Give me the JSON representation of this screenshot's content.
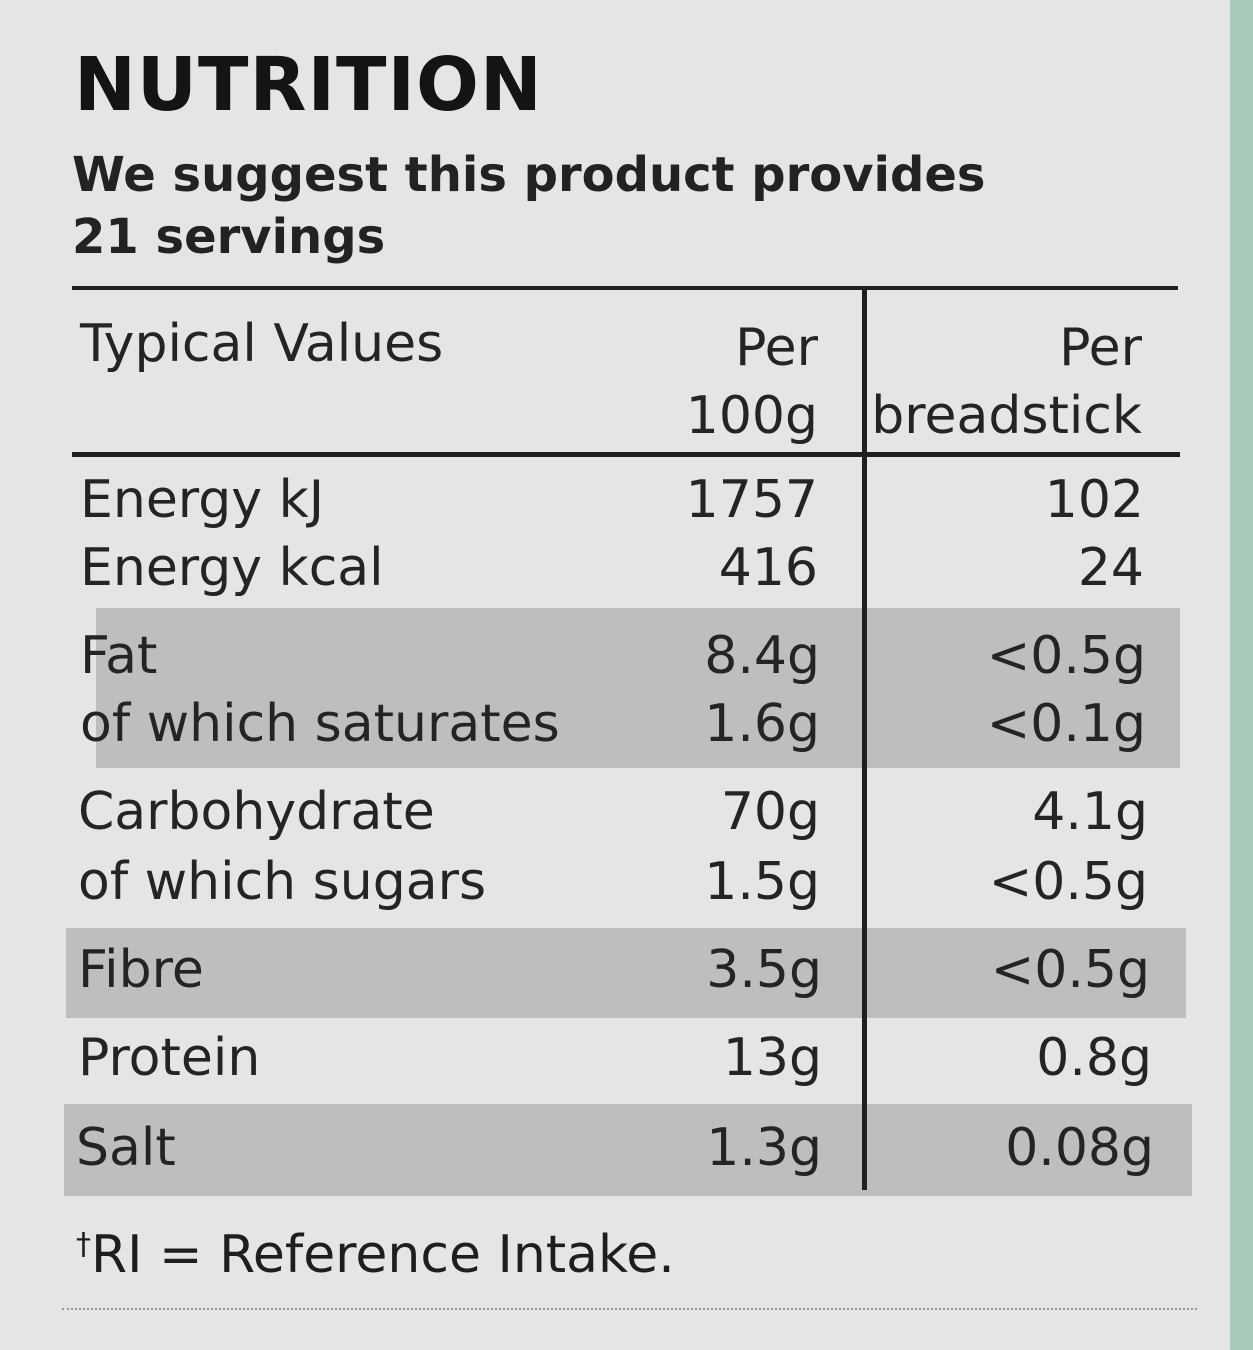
{
  "nutrition": {
    "title": "NUTRITION",
    "intro_line1": "We suggest this product provides",
    "intro_line2": "21 servings",
    "header": {
      "typical_values": "Typical Values",
      "per100_line1": "Per",
      "per100_line2": "100g",
      "perserving_line1": "Per",
      "perserving_line2": "breadstick"
    },
    "rows": [
      {
        "label": "Energy kJ",
        "per100g": "1757",
        "per_breadstick": "102"
      },
      {
        "label": "Energy kcal",
        "per100g": "416",
        "per_breadstick": "24"
      },
      {
        "label": "Fat",
        "per100g": "8.4g",
        "per_breadstick": "<0.5g"
      },
      {
        "label": "of which saturates",
        "per100g": "1.6g",
        "per_breadstick": "<0.1g"
      },
      {
        "label": "Carbohydrate",
        "per100g": "70g",
        "per_breadstick": "4.1g"
      },
      {
        "label": "of which sugars",
        "per100g": "1.5g",
        "per_breadstick": "<0.5g"
      },
      {
        "label": "Fibre",
        "per100g": "3.5g",
        "per_breadstick": "<0.5g"
      },
      {
        "label": "Protein",
        "per100g": "13g",
        "per_breadstick": "0.8g"
      },
      {
        "label": "Salt",
        "per100g": "1.3g",
        "per_breadstick": "0.08g"
      }
    ],
    "footnote_dagger": "†",
    "footnote_text": "RI = Reference Intake."
  },
  "colors": {
    "background_strip": "#a9c9bb",
    "label_background": "#e6e5e6",
    "shaded_band": "#bfbebf",
    "text": "#1e1e1e"
  }
}
